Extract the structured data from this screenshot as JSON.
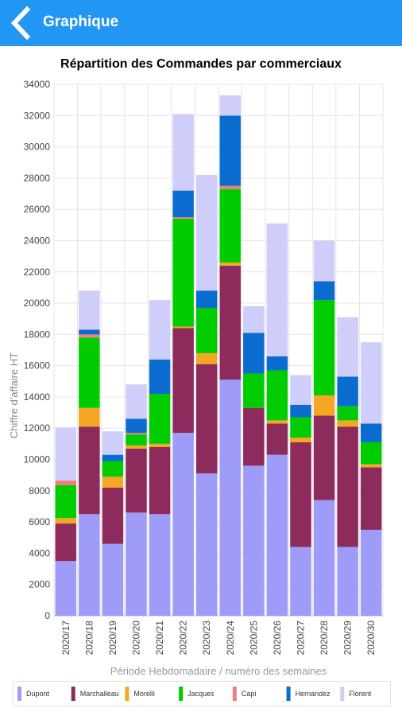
{
  "appbar": {
    "title": "Graphique",
    "back_icon": "chevron-left-icon",
    "color": "#2196f3"
  },
  "chart_data": {
    "type": "bar",
    "stacked": true,
    "title": "Répartition des Commandes par commerciaux",
    "xlabel": "Période Hebdomadaire / numéro des semaines",
    "ylabel": "Chiffre d'affaire HT",
    "ylim": [
      0,
      34000
    ],
    "yticks": [
      0,
      2000,
      4000,
      6000,
      8000,
      10000,
      12000,
      14000,
      16000,
      18000,
      20000,
      22000,
      24000,
      26000,
      28000,
      30000,
      32000,
      34000
    ],
    "grid": true,
    "legend_position": "bottom",
    "categories": [
      "2020/17",
      "2020/18",
      "2020/19",
      "2020/20",
      "2020/21",
      "2020/22",
      "2020/23",
      "2020/24",
      "2020/25",
      "2020/26",
      "2020/27",
      "2020/28",
      "2020/29",
      "2020/30"
    ],
    "series": [
      {
        "name": "Dupont",
        "color": "#9e9cf8",
        "values": [
          3500,
          6500,
          4600,
          6600,
          6500,
          11700,
          9100,
          15100,
          9600,
          10300,
          4400,
          7400,
          4400,
          5500
        ]
      },
      {
        "name": "Marchalleau",
        "color": "#8c2b5c",
        "values": [
          2400,
          5600,
          3600,
          4100,
          4300,
          6700,
          7000,
          7300,
          3700,
          2000,
          6700,
          5400,
          7700,
          4000
        ]
      },
      {
        "name": "Morelli",
        "color": "#f5a623",
        "values": [
          350,
          1200,
          700,
          200,
          200,
          100,
          700,
          200,
          0,
          200,
          300,
          1300,
          400,
          200
        ]
      },
      {
        "name": "Jacques",
        "color": "#00cc00",
        "values": [
          2100,
          4500,
          1000,
          700,
          3200,
          6900,
          2900,
          4700,
          2200,
          3200,
          1300,
          6100,
          900,
          1400
        ]
      },
      {
        "name": "Capi",
        "color": "#f47c7c",
        "values": [
          300,
          200,
          0,
          100,
          0,
          100,
          0,
          200,
          0,
          0,
          0,
          0,
          0,
          0
        ]
      },
      {
        "name": "Hernandez",
        "color": "#0a6ccf",
        "values": [
          0,
          300,
          400,
          900,
          2200,
          1700,
          1100,
          4500,
          2600,
          900,
          800,
          1200,
          1900,
          1200
        ]
      },
      {
        "name": "Florent",
        "color": "#cfcdfa",
        "values": [
          3400,
          2500,
          1500,
          2200,
          3800,
          4900,
          7400,
          1300,
          1700,
          8500,
          1900,
          2600,
          3800,
          5200
        ]
      }
    ]
  }
}
